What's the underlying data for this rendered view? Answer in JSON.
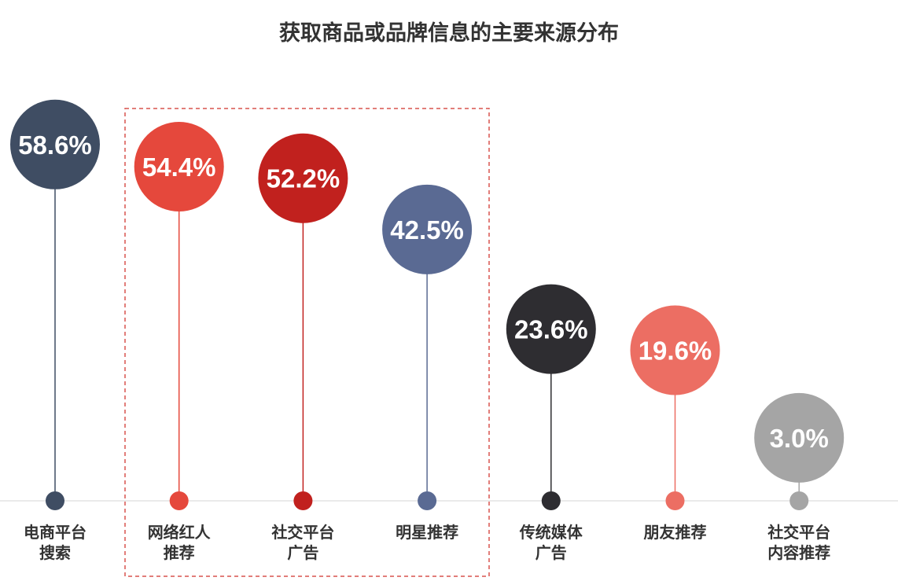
{
  "chart_data": {
    "type": "lollipop",
    "title": "获取商品或品牌信息的主要来源分布",
    "categories": [
      "电商平台搜索",
      "网络红人推荐",
      "社交平台广告",
      "明星推荐",
      "传统媒体广告",
      "朋友推荐",
      "社交平台内容推荐"
    ],
    "values": [
      58.6,
      54.4,
      52.2,
      42.5,
      23.6,
      19.6,
      3.0
    ],
    "value_labels": [
      "58.6%",
      "54.4%",
      "52.2%",
      "42.5%",
      "23.6%",
      "19.6%",
      "3.0%"
    ],
    "colors": [
      "#3f4d63",
      "#e5483c",
      "#c1211e",
      "#5a6a93",
      "#2e2d31",
      "#ec6e63",
      "#a5a5a5"
    ]
  }
}
